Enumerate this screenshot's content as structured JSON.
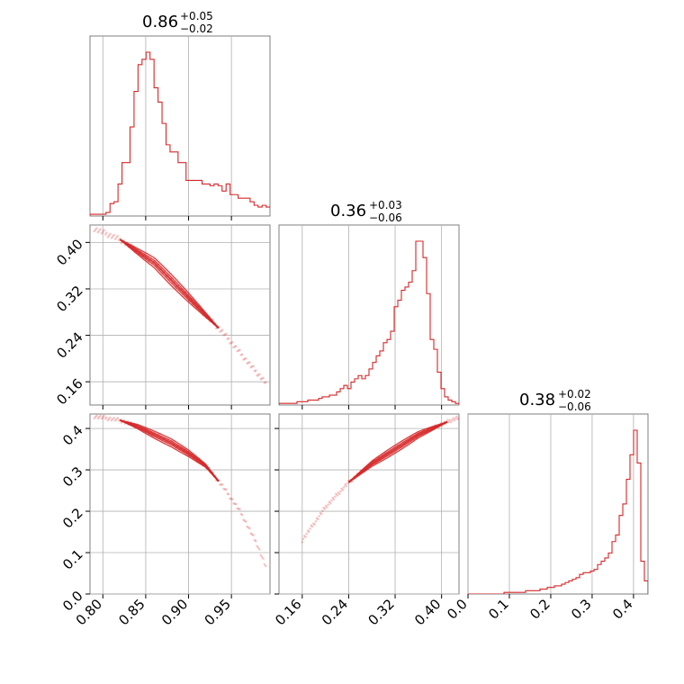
{
  "chart_data": {
    "type": "corner",
    "color": "#d62728",
    "grid": true,
    "parameters": [
      {
        "title": "0.86",
        "title_plus": "+0.05",
        "title_minus": "−0.02",
        "range": [
          0.785,
          0.995
        ],
        "ticks": [
          0.8,
          0.85,
          0.9,
          0.95
        ],
        "tick_labels": [
          "0.80",
          "0.85",
          "0.90",
          "0.95"
        ],
        "hist_x0": 0.785,
        "hist_dx": 0.00467,
        "hist": [
          1,
          1,
          1,
          1,
          2,
          7,
          8,
          18,
          30,
          30,
          50,
          70,
          85,
          88,
          92,
          88,
          72,
          64,
          52,
          40,
          36,
          36,
          30,
          30,
          20,
          20,
          20,
          20,
          18,
          18,
          17,
          18,
          17,
          14,
          18,
          12,
          12,
          10,
          10,
          10,
          8,
          6,
          5,
          6,
          5,
          6,
          5,
          4,
          5,
          3
        ]
      },
      {
        "title": "0.36",
        "title_plus": "+0.03",
        "title_minus": "−0.06",
        "range": [
          0.12,
          0.43
        ],
        "ticks": [
          0.16,
          0.24,
          0.32,
          0.4
        ],
        "tick_labels": [
          "0.16",
          "0.24",
          "0.32",
          "0.40"
        ],
        "hist_x0": 0.12,
        "hist_dx": 0.0062,
        "hist": [
          1,
          1,
          1,
          1,
          1,
          2,
          2,
          2,
          3,
          3,
          3,
          4,
          5,
          5,
          6,
          6,
          8,
          10,
          12,
          10,
          14,
          16,
          18,
          16,
          18,
          22,
          26,
          30,
          33,
          38,
          40,
          45,
          60,
          64,
          70,
          72,
          75,
          82,
          100,
          100,
          90,
          68,
          40,
          34,
          20,
          10,
          5,
          3,
          2,
          1
        ]
      },
      {
        "title": "0.38",
        "title_plus": "+0.02",
        "title_minus": "−0.06",
        "range": [
          0.0,
          0.435
        ],
        "ticks": [
          0.0,
          0.1,
          0.2,
          0.3,
          0.4
        ],
        "tick_labels": [
          "0.0",
          "0.1",
          "0.2",
          "0.3",
          "0.4"
        ],
        "hist_x0": 0.0,
        "hist_dx": 0.0087,
        "hist": [
          0,
          0,
          0,
          0,
          0,
          0,
          0,
          0,
          0,
          0,
          1,
          1,
          1,
          1,
          1,
          1,
          2,
          2,
          2,
          2,
          3,
          3,
          4,
          4,
          5,
          5,
          6,
          7,
          8,
          9,
          10,
          12,
          13,
          13,
          14,
          15,
          18,
          20,
          22,
          25,
          32,
          36,
          48,
          55,
          70,
          85,
          100,
          80,
          20,
          8
        ]
      }
    ],
    "pair_ylim": {
      "row1": [
        0.12,
        0.43
      ],
      "row2": [
        0.0,
        0.435
      ]
    },
    "left_ticks": {
      "row1": [
        0.16,
        0.24,
        0.32,
        0.4
      ],
      "row1_labels": [
        "0.16",
        "0.24",
        "0.32",
        "0.40"
      ],
      "row2": [
        0.0,
        0.1,
        0.2,
        0.3,
        0.4
      ],
      "row2_labels": [
        "0.0",
        "0.1",
        "0.2",
        "0.3",
        "0.4"
      ]
    },
    "pairs": [
      {
        "name": "p1-vs-p0",
        "curve_x": [
          0.788,
          0.82,
          0.84,
          0.86,
          0.88,
          0.9,
          0.92,
          0.94,
          0.96,
          0.98,
          0.995
        ],
        "curve_y": [
          0.425,
          0.405,
          0.385,
          0.365,
          0.335,
          0.305,
          0.275,
          0.245,
          0.21,
          0.175,
          0.15
        ],
        "core": [
          0.82,
          0.935
        ],
        "halo": [
          0.79,
          0.99
        ]
      },
      {
        "name": "p2-vs-p0",
        "curve_x": [
          0.788,
          0.82,
          0.84,
          0.86,
          0.88,
          0.9,
          0.92,
          0.94,
          0.96,
          0.98,
          0.995
        ],
        "curve_y": [
          0.43,
          0.42,
          0.405,
          0.385,
          0.365,
          0.34,
          0.31,
          0.26,
          0.2,
          0.12,
          0.04
        ],
        "core": [
          0.82,
          0.935
        ],
        "halo": [
          0.79,
          0.99
        ]
      },
      {
        "name": "p2-vs-p1",
        "curve_x": [
          0.12,
          0.16,
          0.2,
          0.24,
          0.28,
          0.32,
          0.36,
          0.4,
          0.425
        ],
        "curve_y": [
          0.03,
          0.13,
          0.21,
          0.27,
          0.315,
          0.35,
          0.385,
          0.41,
          0.425
        ],
        "core": [
          0.24,
          0.41
        ],
        "halo": [
          0.16,
          0.43
        ]
      }
    ]
  }
}
